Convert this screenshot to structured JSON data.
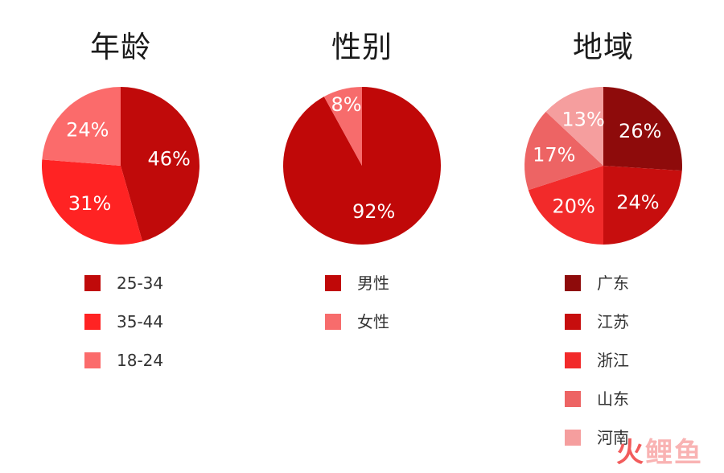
{
  "watermark": {
    "a": "火",
    "b": "鲤鱼"
  },
  "chart_data": [
    {
      "type": "pie",
      "title": "年龄",
      "slices": [
        {
          "label": "25-34",
          "value": 46,
          "display": "46%",
          "color": "#c00a0a"
        },
        {
          "label": "35-44",
          "value": 31,
          "display": "31%",
          "color": "#ff2323"
        },
        {
          "label": "18-24",
          "value": 24,
          "display": "24%",
          "color": "#fb6b6b"
        }
      ],
      "legend_placement": "bottom"
    },
    {
      "type": "pie",
      "title": "性别",
      "slices": [
        {
          "label": "男性",
          "value": 92,
          "display": "92%",
          "color": "#c00808"
        },
        {
          "label": "女性",
          "value": 8,
          "display": "8%",
          "color": "#f76c6c"
        }
      ],
      "legend_placement": "bottom"
    },
    {
      "type": "pie",
      "title": "地域",
      "slices": [
        {
          "label": "广东",
          "value": 26,
          "display": "26%",
          "color": "#8e0b0b"
        },
        {
          "label": "江苏",
          "value": 24,
          "display": "24%",
          "color": "#c70e0e"
        },
        {
          "label": "浙江",
          "value": 20,
          "display": "20%",
          "color": "#f22a2a"
        },
        {
          "label": "山东",
          "value": 17,
          "display": "17%",
          "color": "#ed6464"
        },
        {
          "label": "河南",
          "value": 13,
          "display": "13%",
          "color": "#f59e9e"
        }
      ],
      "legend_placement": "bottom"
    }
  ]
}
